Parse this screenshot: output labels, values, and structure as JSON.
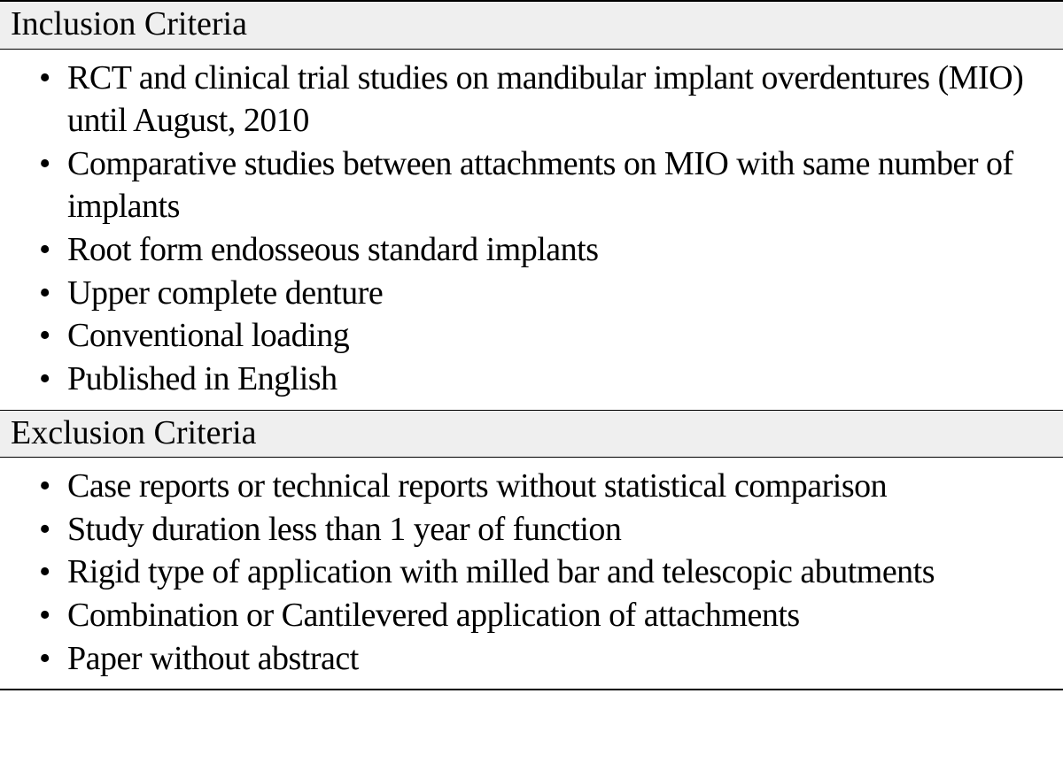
{
  "table": {
    "type": "table",
    "background_color": "#ffffff",
    "header_background_color": "#efefef",
    "border_color": "#000000",
    "text_color": "#000000",
    "font_family": "Times New Roman",
    "header_fontsize": 38,
    "item_fontsize": 38,
    "sections": [
      {
        "header": "Inclusion Criteria",
        "items": [
          "RCT and clinical trial studies on mandibular implant overdentures (MIO) until August, 2010",
          "Comparative studies between attachments on MIO with same number of implants",
          "Root form endosseous standard implants",
          "Upper complete denture",
          "Conventional loading",
          "Published in English"
        ]
      },
      {
        "header": "Exclusion Criteria",
        "items": [
          "Case reports or technical reports without statistical comparison",
          "Study duration less than 1 year of function",
          "Rigid type of application with milled bar and telescopic abutments",
          "Combination or Cantilevered application of attachments",
          "Paper without abstract"
        ]
      }
    ]
  }
}
